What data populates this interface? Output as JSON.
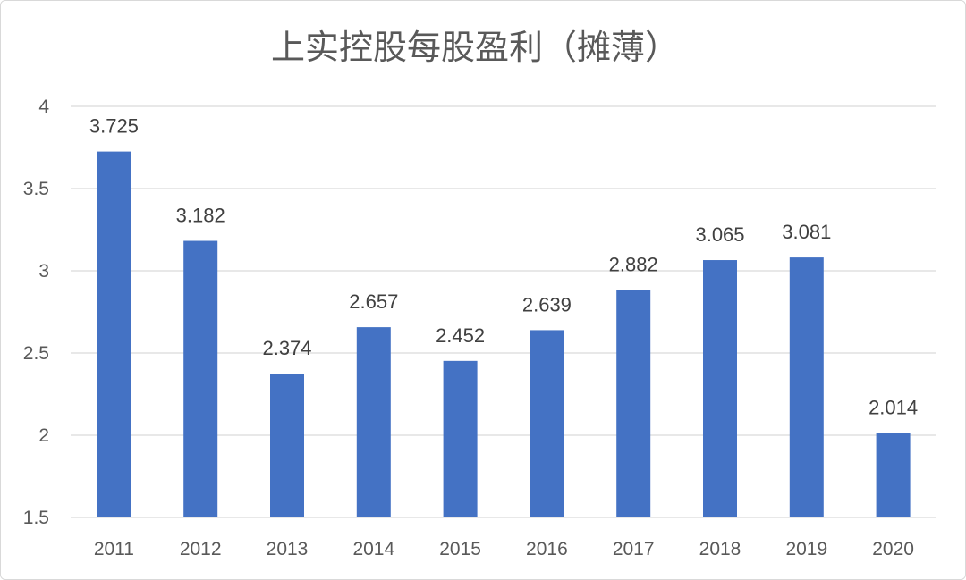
{
  "chart_data": {
    "type": "bar",
    "title": "上实控股每股盈利（摊薄）",
    "categories": [
      "2011",
      "2012",
      "2013",
      "2014",
      "2015",
      "2016",
      "2017",
      "2018",
      "2019",
      "2020"
    ],
    "values": [
      3.725,
      3.182,
      2.374,
      2.657,
      2.452,
      2.639,
      2.882,
      3.065,
      3.081,
      2.014
    ],
    "value_labels": [
      "3.725",
      "3.182",
      "2.374",
      "2.657",
      "2.452",
      "2.639",
      "2.882",
      "3.065",
      "3.081",
      "2.014"
    ],
    "ylim": [
      1.5,
      4
    ],
    "yticks": [
      1.5,
      2,
      2.5,
      3,
      3.5,
      4
    ],
    "ytick_labels": [
      "1.5",
      "2",
      "2.5",
      "3",
      "3.5",
      "4"
    ],
    "xlabel": "",
    "ylabel": "",
    "grid": true,
    "legend": "none",
    "bar_color": "#4472c4"
  }
}
